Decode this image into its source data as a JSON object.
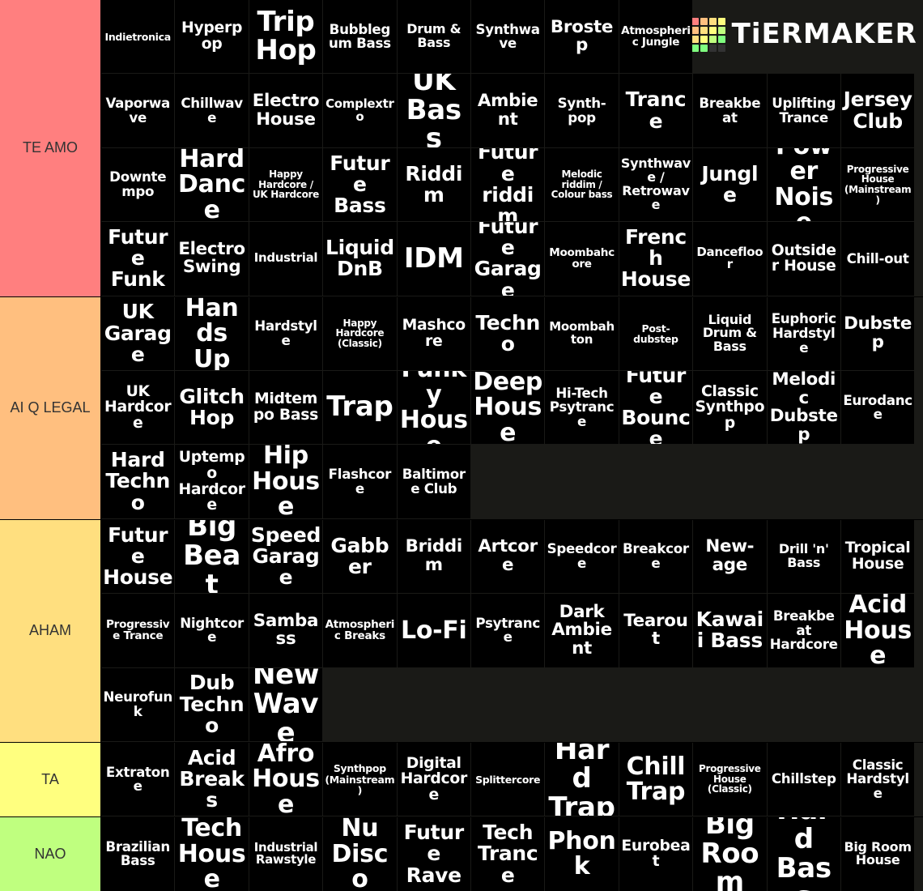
{
  "logo": "TiERMAKER",
  "tiers": [
    {
      "label": "TE AMO",
      "color": "#ff7f7f",
      "items": [
        "Indietronica",
        "Hyperpop",
        "Trip Hop",
        "Bubblegum Bass",
        "Drum & Bass",
        "Synthwave",
        "Brostep",
        "Atmospheric Jungle",
        "Vaporwave",
        "Chillwave",
        "Electro House",
        "Complextro",
        "UK Bass",
        "Ambient",
        "Synth-pop",
        "Trance",
        "Breakbeat",
        "Uplifting Trance",
        "Jersey Club",
        "Downtempo",
        "Hard Dance",
        "Happy Hardcore / UK Hardcore",
        "Future Bass",
        "Riddim",
        "Future riddim",
        "Melodic riddim / Colour bass",
        "Synthwave / Retrowave",
        "Jungle",
        "Power Noise",
        "Progressive House (Mainstream)",
        "Future Funk",
        "Electro Swing",
        "Industrial",
        "Liquid DnB",
        "IDM",
        "Future Garage",
        "Moombahcore",
        "French House",
        "Dancefloor",
        "Outsider House",
        "Chill-out"
      ]
    },
    {
      "label": "AI Q LEGAL",
      "color": "#ffbf7f",
      "items": [
        "UK Garage",
        "Hands Up",
        "Hardstyle",
        "Happy Hardcore (Classic)",
        "Mashcore",
        "Techno",
        "Moombahton",
        "Post-dubstep",
        "Liquid Drum & Bass",
        "Euphoric Hardstyle",
        "Dubstep",
        "UK Hardcore",
        "Glitch Hop",
        "Midtempo Bass",
        "Trap",
        "Funky House",
        "Deep House",
        "Hi-Tech Psytrance",
        "Future Bounce",
        "Classic Synthpop",
        "Melodic Dubstep",
        "Eurodance",
        "Hard Techno",
        "Uptempo Hardcore",
        "Hip House",
        "Flashcore",
        "Baltimore Club"
      ]
    },
    {
      "label": "AHAM",
      "color": "#ffdf7f",
      "items": [
        "Future House",
        "Big Beat",
        "Speed Garage",
        "Gabber",
        "Briddim",
        "Artcore",
        "Speedcore",
        "Breakcore",
        "New-age",
        "Drill 'n' Bass",
        "Tropical House",
        "Progressive Trance",
        "Nightcore",
        "Sambass",
        "Atmospheric Breaks",
        "Lo-Fi",
        "Psytrance",
        "Dark Ambient",
        "Tearout",
        "Kawaii Bass",
        "Breakbeat Hardcore",
        "Acid House",
        "Neurofunk",
        "Dub Techno",
        "New Wave"
      ]
    },
    {
      "label": "TA",
      "color": "#ffff7f",
      "items": [
        "Extratone",
        "Acid Breaks",
        "Afro House",
        "Synthpop (Mainstream)",
        "Digital Hardcore",
        "Splittercore",
        "Hard Trap",
        "Chill Trap",
        "Progressive House (Classic)",
        "Chillstep",
        "Classic Hardstyle"
      ]
    },
    {
      "label": "NAO",
      "color": "#bfff7f",
      "items": [
        "Brazilian Bass",
        "Tech House",
        "Industrial Rawstyle",
        "Nu Disco",
        "Future Rave",
        "Tech Trance",
        "Phonk",
        "Eurobeat",
        "Big Room",
        "Hard Bass",
        "Big Room House"
      ]
    }
  ]
}
